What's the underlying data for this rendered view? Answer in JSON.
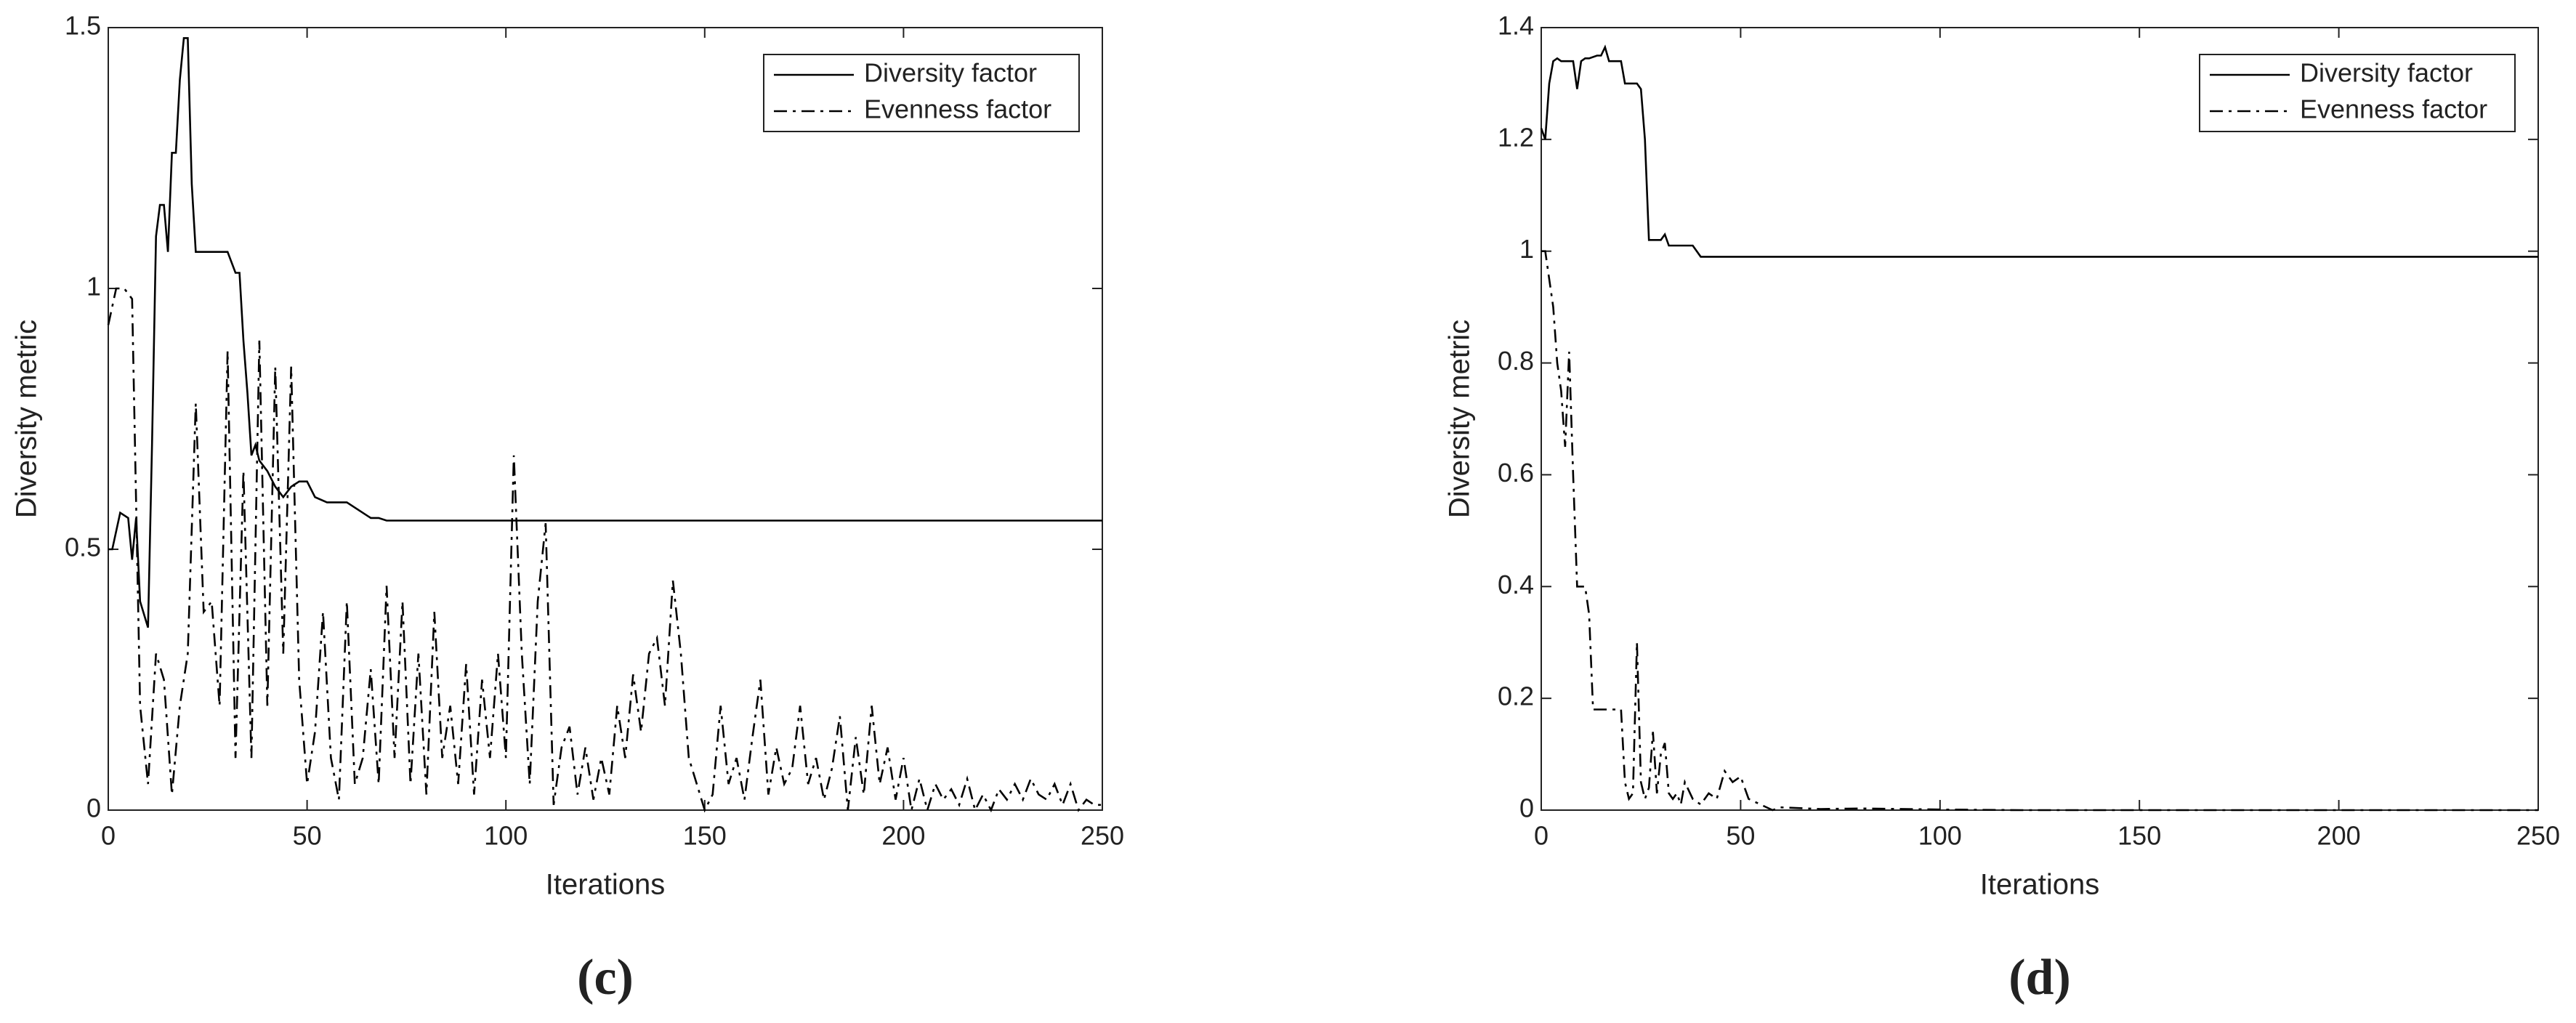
{
  "chart_data": [
    {
      "type": "line",
      "caption": "(c)",
      "xlabel": "Iterations",
      "ylabel": "Diversity metric",
      "xlim": [
        0,
        250
      ],
      "xticks": [
        0,
        50,
        100,
        150,
        200,
        250
      ],
      "ylim": [
        0,
        1.5
      ],
      "yticks": [
        0,
        0.5,
        1,
        1.5
      ],
      "legend": "upper right",
      "series": [
        {
          "name": "Diversity factor",
          "color": "#000000",
          "style": "solid",
          "x": [
            0,
            1,
            3,
            5,
            6,
            7,
            8,
            10,
            11,
            12,
            13,
            14,
            15,
            16,
            17,
            18,
            19,
            20,
            21,
            22,
            25,
            30,
            32,
            33,
            34,
            35,
            36,
            37,
            38,
            40,
            42,
            44,
            46,
            48,
            50,
            52,
            55,
            57,
            60,
            66,
            68,
            70,
            250
          ],
          "values": [
            0.5,
            0.5,
            0.57,
            0.56,
            0.48,
            0.56,
            0.4,
            0.35,
            0.7,
            1.1,
            1.16,
            1.16,
            1.07,
            1.26,
            1.26,
            1.4,
            1.48,
            1.48,
            1.2,
            1.07,
            1.07,
            1.07,
            1.03,
            1.03,
            0.9,
            0.8,
            0.68,
            0.7,
            0.67,
            0.65,
            0.62,
            0.6,
            0.62,
            0.63,
            0.63,
            0.6,
            0.59,
            0.59,
            0.59,
            0.56,
            0.56,
            0.555,
            0.555
          ]
        },
        {
          "name": "Evenness factor",
          "color": "#000000",
          "style": "dashdot",
          "x": [
            0,
            2,
            4,
            6,
            8,
            10,
            12,
            14,
            16,
            18,
            20,
            22,
            24,
            26,
            28,
            30,
            32,
            34,
            36,
            38,
            40,
            42,
            44,
            46,
            48,
            50,
            52,
            54,
            56,
            58,
            60,
            62,
            64,
            66,
            68,
            70,
            72,
            74,
            76,
            78,
            80,
            82,
            84,
            86,
            88,
            90,
            92,
            94,
            96,
            98,
            100,
            102,
            104,
            106,
            108,
            110,
            112,
            114,
            116,
            118,
            120,
            122,
            124,
            126,
            128,
            130,
            132,
            134,
            136,
            138,
            140,
            142,
            144,
            146,
            148,
            150,
            152,
            154,
            156,
            158,
            160,
            162,
            164,
            166,
            168,
            170,
            172,
            174,
            176,
            178,
            180,
            182,
            184,
            186,
            188,
            190,
            192,
            194,
            196,
            198,
            200,
            202,
            204,
            206,
            208,
            210,
            212,
            214,
            216,
            218,
            220,
            222,
            224,
            226,
            228,
            230,
            232,
            234,
            236,
            238,
            240,
            242,
            244,
            246,
            248,
            250
          ],
          "values": [
            0.93,
            1.0,
            1.0,
            0.98,
            0.2,
            0.05,
            0.3,
            0.25,
            0.03,
            0.2,
            0.3,
            0.78,
            0.38,
            0.4,
            0.2,
            0.88,
            0.1,
            0.65,
            0.1,
            0.9,
            0.2,
            0.85,
            0.3,
            0.85,
            0.25,
            0.05,
            0.15,
            0.38,
            0.1,
            0.02,
            0.4,
            0.05,
            0.1,
            0.27,
            0.05,
            0.43,
            0.1,
            0.4,
            0.05,
            0.3,
            0.03,
            0.38,
            0.1,
            0.2,
            0.05,
            0.28,
            0.03,
            0.25,
            0.1,
            0.3,
            0.1,
            0.68,
            0.3,
            0.05,
            0.4,
            0.55,
            0.01,
            0.12,
            0.16,
            0.03,
            0.12,
            0.02,
            0.1,
            0.03,
            0.2,
            0.1,
            0.26,
            0.15,
            0.3,
            0.33,
            0.2,
            0.44,
            0.3,
            0.1,
            0.05,
            0.0,
            0.03,
            0.2,
            0.05,
            0.1,
            0.02,
            0.14,
            0.25,
            0.03,
            0.12,
            0.05,
            0.08,
            0.2,
            0.05,
            0.1,
            0.02,
            0.08,
            0.18,
            0.0,
            0.14,
            0.03,
            0.2,
            0.05,
            0.12,
            0.02,
            0.1,
            0.0,
            0.06,
            0.0,
            0.05,
            0.02,
            0.04,
            0.01,
            0.06,
            0.0,
            0.03,
            0.0,
            0.04,
            0.02,
            0.05,
            0.02,
            0.06,
            0.03,
            0.02,
            0.05,
            0.01,
            0.05,
            0.0,
            0.02,
            0.01,
            0.01
          ]
        }
      ]
    },
    {
      "type": "line",
      "caption": "(d)",
      "xlabel": "Iterations",
      "ylabel": "Diversity metric",
      "xlim": [
        0,
        250
      ],
      "xticks": [
        0,
        50,
        100,
        150,
        200,
        250
      ],
      "ylim": [
        0,
        1.4
      ],
      "yticks": [
        0,
        0.2,
        0.4,
        0.6,
        0.8,
        1,
        1.2,
        1.4
      ],
      "legend": "upper right",
      "series": [
        {
          "name": "Diversity factor",
          "color": "#000000",
          "style": "solid",
          "x": [
            0,
            1,
            2,
            3,
            4,
            5,
            8,
            9,
            10,
            11,
            12,
            14,
            15,
            16,
            17,
            18,
            20,
            21,
            22,
            23,
            24,
            25,
            26,
            27,
            28,
            29,
            30,
            31,
            32,
            33,
            35,
            38,
            40,
            250
          ],
          "values": [
            1.22,
            1.2,
            1.3,
            1.34,
            1.345,
            1.34,
            1.34,
            1.29,
            1.34,
            1.345,
            1.345,
            1.35,
            1.35,
            1.365,
            1.34,
            1.34,
            1.34,
            1.3,
            1.3,
            1.3,
            1.3,
            1.29,
            1.2,
            1.02,
            1.02,
            1.02,
            1.02,
            1.03,
            1.01,
            1.01,
            1.01,
            1.01,
            0.99,
            0.99
          ]
        },
        {
          "name": "Evenness factor",
          "color": "#000000",
          "style": "dashdot",
          "x": [
            0,
            1,
            2,
            3,
            4,
            5,
            6,
            7,
            8,
            9,
            10,
            11,
            12,
            13,
            14,
            15,
            16,
            18,
            20,
            21,
            22,
            23,
            24,
            25,
            26,
            27,
            28,
            29,
            30,
            31,
            32,
            33,
            34,
            35,
            36,
            38,
            40,
            42,
            44,
            46,
            48,
            50,
            52,
            55,
            58,
            60,
            70,
            80,
            100,
            120,
            150,
            200,
            250
          ],
          "values": [
            1.0,
            1.0,
            0.95,
            0.9,
            0.8,
            0.75,
            0.65,
            0.82,
            0.6,
            0.4,
            0.4,
            0.4,
            0.35,
            0.18,
            0.18,
            0.18,
            0.18,
            0.18,
            0.18,
            0.05,
            0.02,
            0.03,
            0.3,
            0.05,
            0.02,
            0.04,
            0.14,
            0.03,
            0.1,
            0.12,
            0.03,
            0.02,
            0.03,
            0.01,
            0.05,
            0.02,
            0.01,
            0.03,
            0.02,
            0.07,
            0.05,
            0.06,
            0.02,
            0.01,
            0.0,
            0.005,
            0.002,
            0.003,
            0.001,
            0.0,
            0.0,
            0.0,
            0.0
          ]
        }
      ]
    }
  ]
}
